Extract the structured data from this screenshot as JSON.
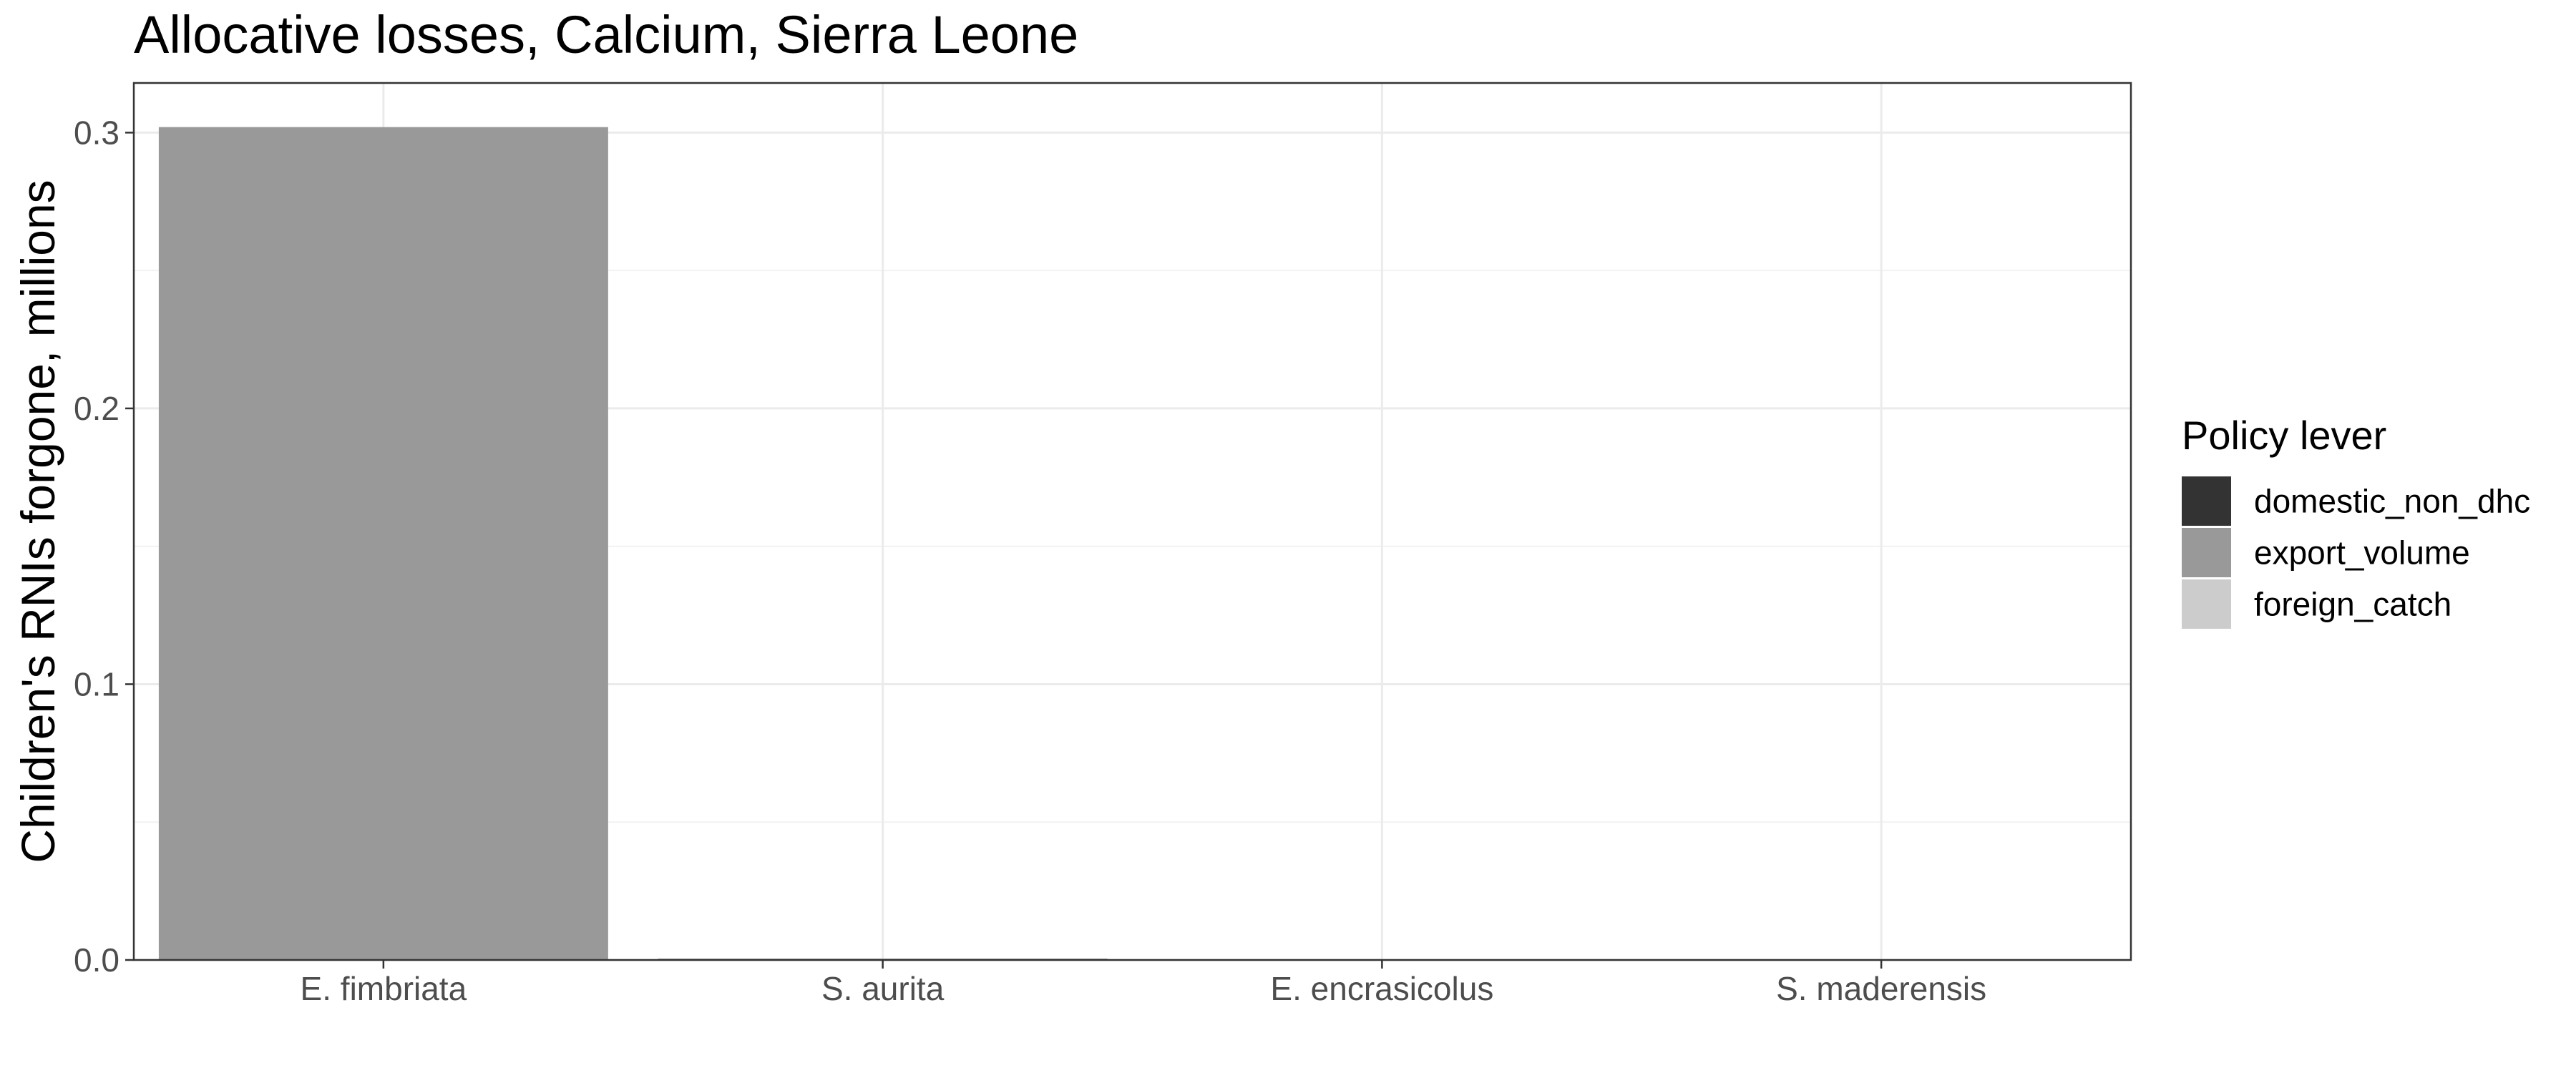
{
  "chart_data": {
    "type": "bar",
    "title": "Allocative losses, Calcium, Sierra Leone",
    "xlabel": "",
    "ylabel": "Children's RNIs forgone, millions",
    "categories": [
      "E. fimbriata",
      "S. aurita",
      "E. encrasicolus",
      "S. maderensis"
    ],
    "ylim": [
      0,
      0.318
    ],
    "yticks": [
      0.0,
      0.1,
      0.2,
      0.3
    ],
    "ytick_labels": [
      "0.0",
      "0.1",
      "0.2",
      "0.3"
    ],
    "grid": true,
    "stacked": true,
    "legend": {
      "title": "Policy lever",
      "placement": "right"
    },
    "series": [
      {
        "name": "domestic_non_dhc",
        "color": "#333333",
        "values": [
          0,
          0,
          0,
          0
        ]
      },
      {
        "name": "export_volume",
        "color": "#999999",
        "values": [
          0.302,
          0.0005,
          0,
          0
        ]
      },
      {
        "name": "foreign_catch",
        "color": "#cccccc",
        "values": [
          0,
          0,
          0,
          0
        ]
      }
    ]
  }
}
